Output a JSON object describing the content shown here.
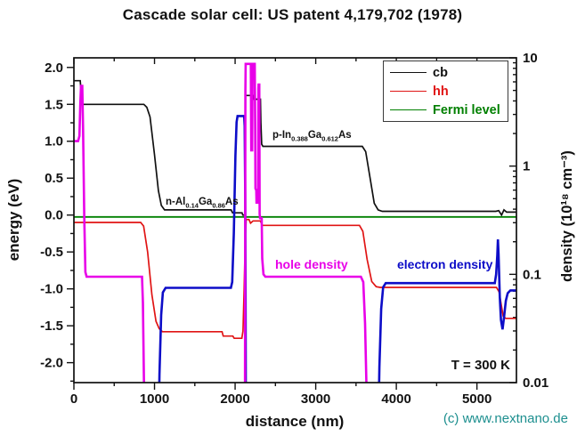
{
  "title": "Cascade solar cell: US patent 4,179,702  (1978)",
  "axes": {
    "x_label": "distance (nm)",
    "y_left_label": "energy (eV)",
    "y_right_label": "density (10¹⁸ cm⁻³)"
  },
  "legend": {
    "items": [
      {
        "label": "cb",
        "color": "#111111"
      },
      {
        "label": "hh",
        "color": "#e01414"
      },
      {
        "label": "Fermi level",
        "color": "#008000"
      }
    ]
  },
  "annotations": {
    "n_region": {
      "segments": [
        {
          "t": "n-Al"
        },
        {
          "t": "0.14",
          "sub": true
        },
        {
          "t": "Ga"
        },
        {
          "t": "0.86",
          "sub": true
        },
        {
          "t": "As"
        }
      ]
    },
    "p_region": {
      "segments": [
        {
          "t": "p-In"
        },
        {
          "t": "0.388",
          "sub": true
        },
        {
          "t": "Ga"
        },
        {
          "t": "0.612",
          "sub": true
        },
        {
          "t": "As"
        }
      ]
    },
    "hole_density": {
      "text": "hole density",
      "color": "#e800e8"
    },
    "electron_density": {
      "text": "electron density",
      "color": "#0d0dc8"
    },
    "temperature": {
      "text": "T = 300 K"
    }
  },
  "footer": {
    "copyright": "(c) www.nextnano.de",
    "color": "#1d8f8f"
  },
  "chart_data": {
    "type": "line",
    "title": "Cascade solar cell: US patent 4,179,702  (1978)",
    "x": {
      "label": "distance (nm)",
      "min": 0,
      "max": 5490,
      "major_ticks": [
        0,
        1000,
        2000,
        3000,
        4000,
        5000
      ],
      "tick_labels": [
        "0",
        "1000",
        "2000",
        "3000",
        "4000",
        "5000"
      ],
      "minor_step": 500
    },
    "y_left": {
      "label": "energy (eV)",
      "min": -2.27,
      "max": 2.13,
      "major_ticks": [
        2.0,
        1.5,
        1.0,
        0.5,
        0.0,
        -0.5,
        -1.0,
        -1.5,
        -2.0
      ],
      "tick_labels": [
        "2.0",
        "1.5",
        "1.0",
        "0.5",
        "0.0",
        "-0.5",
        "-1.0",
        "-1.5",
        "-2.0"
      ],
      "minor_step": 0.25
    },
    "y_right": {
      "label": "density (10^18 cm^-3)",
      "scale": "log",
      "min": 0.01,
      "max": 10,
      "major_ticks": [
        10,
        1,
        0.1,
        0.01
      ],
      "tick_labels": [
        "10",
        "1",
        "0.1",
        "0.01"
      ]
    },
    "series": [
      {
        "name": "cb",
        "axis": "energy",
        "color": "#111111",
        "width": 1.7,
        "points": [
          [
            0,
            1.82
          ],
          [
            78,
            1.82
          ],
          [
            86,
            1.72
          ],
          [
            98,
            1.5
          ],
          [
            868,
            1.5
          ],
          [
            905,
            1.46
          ],
          [
            945,
            1.33
          ],
          [
            1000,
            0.82
          ],
          [
            1048,
            0.33
          ],
          [
            1085,
            0.13
          ],
          [
            1125,
            0.07
          ],
          [
            1950,
            0.07
          ],
          [
            1968,
            0.03
          ],
          [
            2085,
            0.03
          ],
          [
            2096,
            0.0
          ],
          [
            2124,
            0.0
          ],
          [
            2129,
            1.62
          ],
          [
            2226,
            1.62
          ],
          [
            2231,
            1.57
          ],
          [
            2314,
            1.57
          ],
          [
            2320,
            1.25
          ],
          [
            2330,
            0.96
          ],
          [
            2345,
            0.93
          ],
          [
            3578,
            0.93
          ],
          [
            3620,
            0.86
          ],
          [
            3672,
            0.52
          ],
          [
            3726,
            0.16
          ],
          [
            3775,
            0.07
          ],
          [
            3825,
            0.05
          ],
          [
            5235,
            0.05
          ],
          [
            5270,
            0.06
          ],
          [
            5305,
            0.0
          ],
          [
            5335,
            0.07
          ],
          [
            5368,
            0.04
          ],
          [
            5490,
            0.04
          ]
        ]
      },
      {
        "name": "fermi",
        "axis": "energy",
        "color": "#008000",
        "width": 1.8,
        "points": [
          [
            0,
            -0.025
          ],
          [
            5490,
            -0.025
          ]
        ]
      },
      {
        "name": "hh",
        "axis": "energy",
        "color": "#e01414",
        "width": 1.7,
        "points": [
          [
            0,
            -0.1
          ],
          [
            828,
            -0.1
          ],
          [
            865,
            -0.15
          ],
          [
            915,
            -0.5
          ],
          [
            968,
            -1.08
          ],
          [
            1018,
            -1.44
          ],
          [
            1058,
            -1.54
          ],
          [
            1098,
            -1.58
          ],
          [
            1838,
            -1.58
          ],
          [
            1852,
            -1.64
          ],
          [
            1972,
            -1.64
          ],
          [
            1988,
            -1.67
          ],
          [
            2083,
            -1.67
          ],
          [
            2098,
            -1.57
          ],
          [
            2112,
            -1.0
          ],
          [
            2126,
            -0.3
          ],
          [
            2138,
            -0.06
          ],
          [
            2172,
            -0.06
          ],
          [
            2192,
            -0.11
          ],
          [
            2222,
            -0.08
          ],
          [
            2312,
            -0.08
          ],
          [
            2338,
            -0.14
          ],
          [
            3542,
            -0.14
          ],
          [
            3585,
            -0.22
          ],
          [
            3638,
            -0.6
          ],
          [
            3695,
            -0.9
          ],
          [
            3750,
            -0.97
          ],
          [
            3800,
            -0.98
          ],
          [
            5242,
            -0.98
          ],
          [
            5275,
            -1.04
          ],
          [
            5325,
            -1.37
          ],
          [
            5355,
            -1.4
          ],
          [
            5490,
            -1.4
          ]
        ]
      },
      {
        "name": "electron-density",
        "axis": "density",
        "color": "#0d0dc8",
        "width": 2.6,
        "points": [
          [
            1048,
            0.003
          ],
          [
            1062,
            0.012
          ],
          [
            1082,
            0.042
          ],
          [
            1104,
            0.068
          ],
          [
            1138,
            0.075
          ],
          [
            1948,
            0.075
          ],
          [
            1964,
            0.085
          ],
          [
            1984,
            0.24
          ],
          [
            2004,
            1.25
          ],
          [
            2018,
            2.55
          ],
          [
            2030,
            2.9
          ],
          [
            2112,
            2.9
          ],
          [
            2119,
            2.35
          ],
          [
            2125,
            0.55
          ],
          [
            2130,
            0.06
          ],
          [
            2134,
            0.003
          ],
          [
            3775,
            0.003
          ],
          [
            3790,
            0.014
          ],
          [
            3812,
            0.048
          ],
          [
            3836,
            0.076
          ],
          [
            3868,
            0.083
          ],
          [
            5222,
            0.083
          ],
          [
            5238,
            0.1
          ],
          [
            5252,
            0.15
          ],
          [
            5260,
            0.21
          ],
          [
            5268,
            0.155
          ],
          [
            5283,
            0.062
          ],
          [
            5298,
            0.038
          ],
          [
            5318,
            0.031
          ],
          [
            5338,
            0.041
          ],
          [
            5358,
            0.057
          ],
          [
            5382,
            0.067
          ],
          [
            5415,
            0.071
          ],
          [
            5490,
            0.071
          ]
        ]
      },
      {
        "name": "hole-density",
        "axis": "density",
        "color": "#e800e8",
        "width": 2.6,
        "points": [
          [
            0,
            1.7
          ],
          [
            52,
            1.7
          ],
          [
            68,
            1.9
          ],
          [
            80,
            3.8
          ],
          [
            88,
            5.5
          ],
          [
            104,
            5.5
          ],
          [
            114,
            2.2
          ],
          [
            128,
            0.35
          ],
          [
            142,
            0.105
          ],
          [
            158,
            0.095
          ],
          [
            845,
            0.095
          ],
          [
            856,
            0.055
          ],
          [
            866,
            0.015
          ],
          [
            876,
            0.004
          ],
          [
            2122,
            0.004
          ],
          [
            2127,
            5.0
          ],
          [
            2131,
            8.8
          ],
          [
            2195,
            8.8
          ],
          [
            2200,
            1.4
          ],
          [
            2212,
            1.4
          ],
          [
            2217,
            8.8
          ],
          [
            2244,
            8.8
          ],
          [
            2249,
            2.2
          ],
          [
            2252,
            0.62
          ],
          [
            2262,
            0.6
          ],
          [
            2266,
            0.46
          ],
          [
            2286,
            0.46
          ],
          [
            2289,
            5.2
          ],
          [
            2291,
            5.66
          ],
          [
            2300,
            5.66
          ],
          [
            2304,
            0.36
          ],
          [
            2310,
            0.33
          ],
          [
            2330,
            0.33
          ],
          [
            2336,
            0.14
          ],
          [
            2352,
            0.1
          ],
          [
            2375,
            0.095
          ],
          [
            3560,
            0.095
          ],
          [
            3590,
            0.085
          ],
          [
            3612,
            0.035
          ],
          [
            3630,
            0.009
          ],
          [
            3645,
            0.003
          ]
        ]
      }
    ]
  }
}
